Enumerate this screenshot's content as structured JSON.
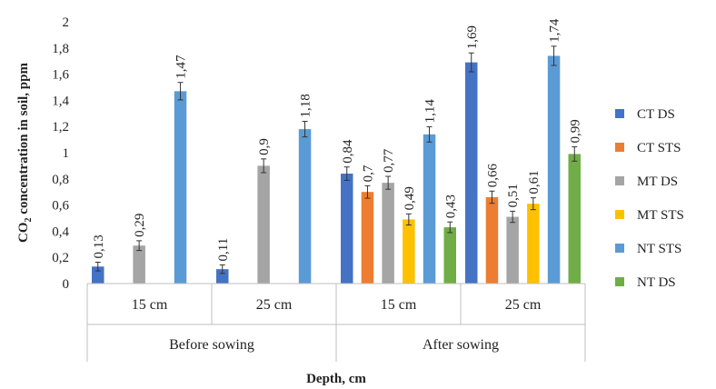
{
  "chart_data": {
    "type": "bar",
    "xlabel": "Depth, cm",
    "ylabel": "CO2 concentration in soil, ppm",
    "ylabel_main": "CO",
    "ylabel_sub": "2",
    "ylabel_rest": " concentration in soil, ppm",
    "ylim": [
      0,
      2
    ],
    "yticks": [
      "0",
      "0,2",
      "0,4",
      "0,6",
      "0,8",
      "1",
      "1,2",
      "1,4",
      "1,6",
      "1,8",
      "2"
    ],
    "grid": false,
    "legend_position": "right",
    "groups": [
      {
        "label": "Before sowing",
        "categories": [
          "15 cm",
          "25 cm"
        ]
      },
      {
        "label": "After sowing",
        "categories": [
          "15 cm",
          "25 cm"
        ]
      }
    ],
    "categories": [
      "15 cm",
      "25 cm",
      "15 cm",
      "25 cm"
    ],
    "series": [
      {
        "name": "CT DS",
        "color": "#4472C4",
        "values": [
          0.13,
          0.11,
          0.84,
          1.69
        ],
        "labels": [
          "0,13",
          "0,11",
          "0,84",
          "1,69"
        ]
      },
      {
        "name": "CT STS",
        "color": "#ED7D31",
        "values": [
          null,
          null,
          0.7,
          0.66
        ],
        "labels": [
          "",
          "",
          "0,7",
          "0,66"
        ]
      },
      {
        "name": "MT DS",
        "color": "#A5A5A5",
        "values": [
          0.29,
          0.9,
          0.77,
          0.51
        ],
        "labels": [
          "0,29",
          "0,9",
          "0,77",
          "0,51"
        ]
      },
      {
        "name": "MT STS",
        "color": "#FFC000",
        "values": [
          null,
          null,
          0.49,
          0.61
        ],
        "labels": [
          "",
          "",
          "0,49",
          "0,61"
        ]
      },
      {
        "name": "NT STS",
        "color": "#5B9BD5",
        "values": [
          1.47,
          1.18,
          1.14,
          1.74
        ],
        "labels": [
          "1,47",
          "1,18",
          "1,14",
          "1,74"
        ]
      },
      {
        "name": "NT DS",
        "color": "#70AD47",
        "values": [
          null,
          null,
          0.43,
          0.99
        ],
        "labels": [
          "",
          "",
          "0,43",
          "0,99"
        ]
      }
    ],
    "error_bars": true
  }
}
